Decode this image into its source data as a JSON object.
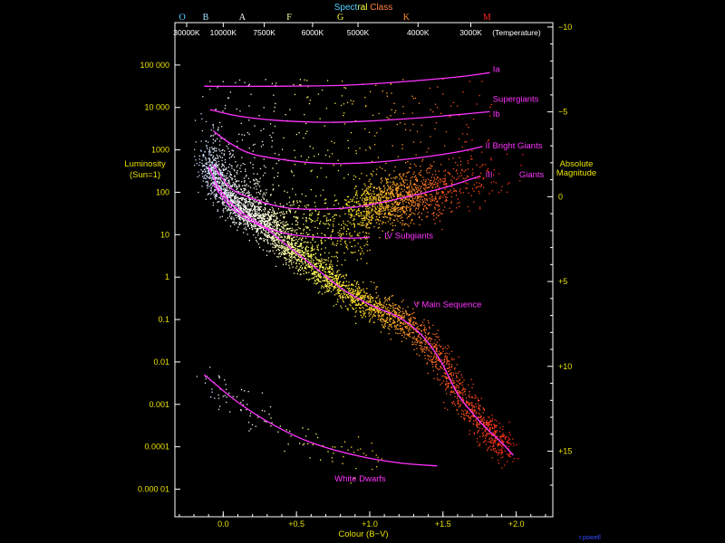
{
  "chart_data": {
    "type": "scatter",
    "title": "",
    "xlabel": "Colour (B−V)",
    "ylabel_left": [
      "Luminosity",
      "(Sun=1)"
    ],
    "ylabel_right": [
      "Absolute",
      "Magnitude"
    ],
    "top_axis_title": {
      "parts": [
        {
          "text": "Spect",
          "color": "#4fd0ff"
        },
        {
          "text": "r",
          "color": "#b0ff80"
        },
        {
          "text": "al",
          "color": "#ffff40"
        },
        {
          "text": " Class",
          "color": "#ff8040"
        }
      ]
    },
    "xlim": [
      -0.33,
      2.25
    ],
    "y_log_lum_range": [
      -5.65,
      6.0
    ],
    "x_ticks": [
      {
        "value": 0.0,
        "label": "0.0"
      },
      {
        "value": 0.5,
        "label": "+0.5"
      },
      {
        "value": 1.0,
        "label": "+1.0"
      },
      {
        "value": 1.5,
        "label": "+1.5"
      },
      {
        "value": 2.0,
        "label": "+2.0"
      }
    ],
    "luminosity_ticks": [
      {
        "value": 100000,
        "label": "100 000"
      },
      {
        "value": 10000,
        "label": "10 000"
      },
      {
        "value": 1000,
        "label": "1000"
      },
      {
        "value": 100,
        "label": "100"
      },
      {
        "value": 10,
        "label": "10"
      },
      {
        "value": 1,
        "label": "1"
      },
      {
        "value": 0.1,
        "label": "0.1"
      },
      {
        "value": 0.01,
        "label": "0.01"
      },
      {
        "value": 0.001,
        "label": "0.001"
      },
      {
        "value": 0.0001,
        "label": "0.0001"
      },
      {
        "value": 1e-05,
        "label": "0.000 01"
      }
    ],
    "magnitude_ticks": [
      {
        "value": -10,
        "label": "−10"
      },
      {
        "value": -5,
        "label": "−5"
      },
      {
        "value": 0,
        "label": "0"
      },
      {
        "value": 5,
        "label": "+5"
      },
      {
        "value": 10,
        "label": "+10"
      },
      {
        "value": 15,
        "label": "+15"
      }
    ],
    "spectral_classes": [
      {
        "label": "O",
        "x": -0.28,
        "color": "#4fd0ff"
      },
      {
        "label": "B",
        "x": -0.12,
        "color": "#a0e0ff"
      },
      {
        "label": "A",
        "x": 0.13,
        "color": "#ffffff"
      },
      {
        "label": "F",
        "x": 0.45,
        "color": "#ffffa0"
      },
      {
        "label": "G",
        "x": 0.8,
        "color": "#ffff40"
      },
      {
        "label": "K",
        "x": 1.25,
        "color": "#ff9020"
      },
      {
        "label": "M",
        "x": 1.8,
        "color": "#ff2020"
      }
    ],
    "temperature_ticks": [
      {
        "label": "30000K",
        "x": -0.25
      },
      {
        "label": "10000K",
        "x": -0.0
      },
      {
        "label": "7500K",
        "x": 0.28
      },
      {
        "label": "6000K",
        "x": 0.61
      },
      {
        "label": "5000K",
        "x": 0.92
      },
      {
        "label": "4000K",
        "x": 1.33
      },
      {
        "label": "3000K",
        "x": 1.69
      }
    ],
    "temperature_title": "(Temperature)",
    "luminosity_classes": [
      {
        "name": "Ia",
        "label_x": 1.84,
        "label_logL": 4.9,
        "curve": [
          [
            -0.13,
            4.5
          ],
          [
            0.3,
            4.5
          ],
          [
            0.8,
            4.52
          ],
          [
            1.2,
            4.6
          ],
          [
            1.6,
            4.72
          ],
          [
            1.82,
            4.82
          ]
        ]
      },
      {
        "name": "Supergiants",
        "label_x": 1.84,
        "label_logL": 4.2,
        "curve": []
      },
      {
        "name": "Ib",
        "label_x": 1.84,
        "label_logL": 3.85,
        "curve": [
          [
            -0.09,
            3.95
          ],
          [
            0.1,
            3.8
          ],
          [
            0.35,
            3.7
          ],
          [
            0.7,
            3.65
          ],
          [
            1.0,
            3.68
          ],
          [
            1.4,
            3.77
          ],
          [
            1.82,
            3.9
          ]
        ]
      },
      {
        "name": "II Bright Giants",
        "label_x": 1.79,
        "label_logL": 3.1,
        "curve": [
          [
            -0.07,
            3.45
          ],
          [
            0.05,
            3.15
          ],
          [
            0.2,
            2.9
          ],
          [
            0.45,
            2.75
          ],
          [
            0.7,
            2.68
          ],
          [
            1.0,
            2.7
          ],
          [
            1.3,
            2.8
          ],
          [
            1.6,
            2.95
          ],
          [
            1.77,
            3.08
          ]
        ]
      },
      {
        "name": "III",
        "label_x": 1.79,
        "label_logL": 2.42,
        "curve": [
          [
            -0.07,
            2.65
          ],
          [
            0.05,
            2.1
          ],
          [
            0.2,
            1.85
          ],
          [
            0.4,
            1.65
          ],
          [
            0.6,
            1.6
          ],
          [
            0.9,
            1.65
          ],
          [
            1.2,
            1.85
          ],
          [
            1.5,
            2.1
          ],
          [
            1.75,
            2.38
          ]
        ]
      },
      {
        "name": "Giants",
        "label_x": 2.02,
        "label_logL": 2.42,
        "curve": []
      },
      {
        "name": "IV Subgiants",
        "label_x": 1.1,
        "label_logL": 0.97,
        "curve": [
          [
            -0.07,
            2.2
          ],
          [
            0.05,
            1.65
          ],
          [
            0.2,
            1.3
          ],
          [
            0.4,
            1.05
          ],
          [
            0.6,
            0.95
          ],
          [
            0.85,
            0.92
          ],
          [
            1.0,
            0.94
          ]
        ]
      },
      {
        "name": "V  Main Sequence",
        "label_x": 1.3,
        "label_logL": -0.65,
        "curve": [
          [
            -0.1,
            2.6
          ],
          [
            -0.02,
            2.05
          ],
          [
            0.1,
            1.6
          ],
          [
            0.25,
            1.25
          ],
          [
            0.4,
            0.85
          ],
          [
            0.6,
            0.3
          ],
          [
            0.8,
            -0.25
          ],
          [
            1.0,
            -0.65
          ],
          [
            1.2,
            -0.95
          ],
          [
            1.35,
            -1.35
          ],
          [
            1.48,
            -1.95
          ],
          [
            1.6,
            -2.75
          ],
          [
            1.75,
            -3.4
          ],
          [
            1.9,
            -3.9
          ],
          [
            1.98,
            -4.2
          ]
        ]
      },
      {
        "name": "White Dwarfs",
        "label_x": 0.76,
        "label_logL": -4.75,
        "curve": [
          [
            -0.13,
            -2.3
          ],
          [
            0.1,
            -2.95
          ],
          [
            0.35,
            -3.5
          ],
          [
            0.6,
            -3.9
          ],
          [
            0.9,
            -4.2
          ],
          [
            1.2,
            -4.38
          ],
          [
            1.46,
            -4.45
          ]
        ]
      }
    ],
    "colors": {
      "background": "#000000",
      "axis": "#ffffff",
      "ticks_text": "#e8e000",
      "class_lines": "#ff33ff"
    },
    "grid": false,
    "legend": "none",
    "footer": "r.powell"
  }
}
